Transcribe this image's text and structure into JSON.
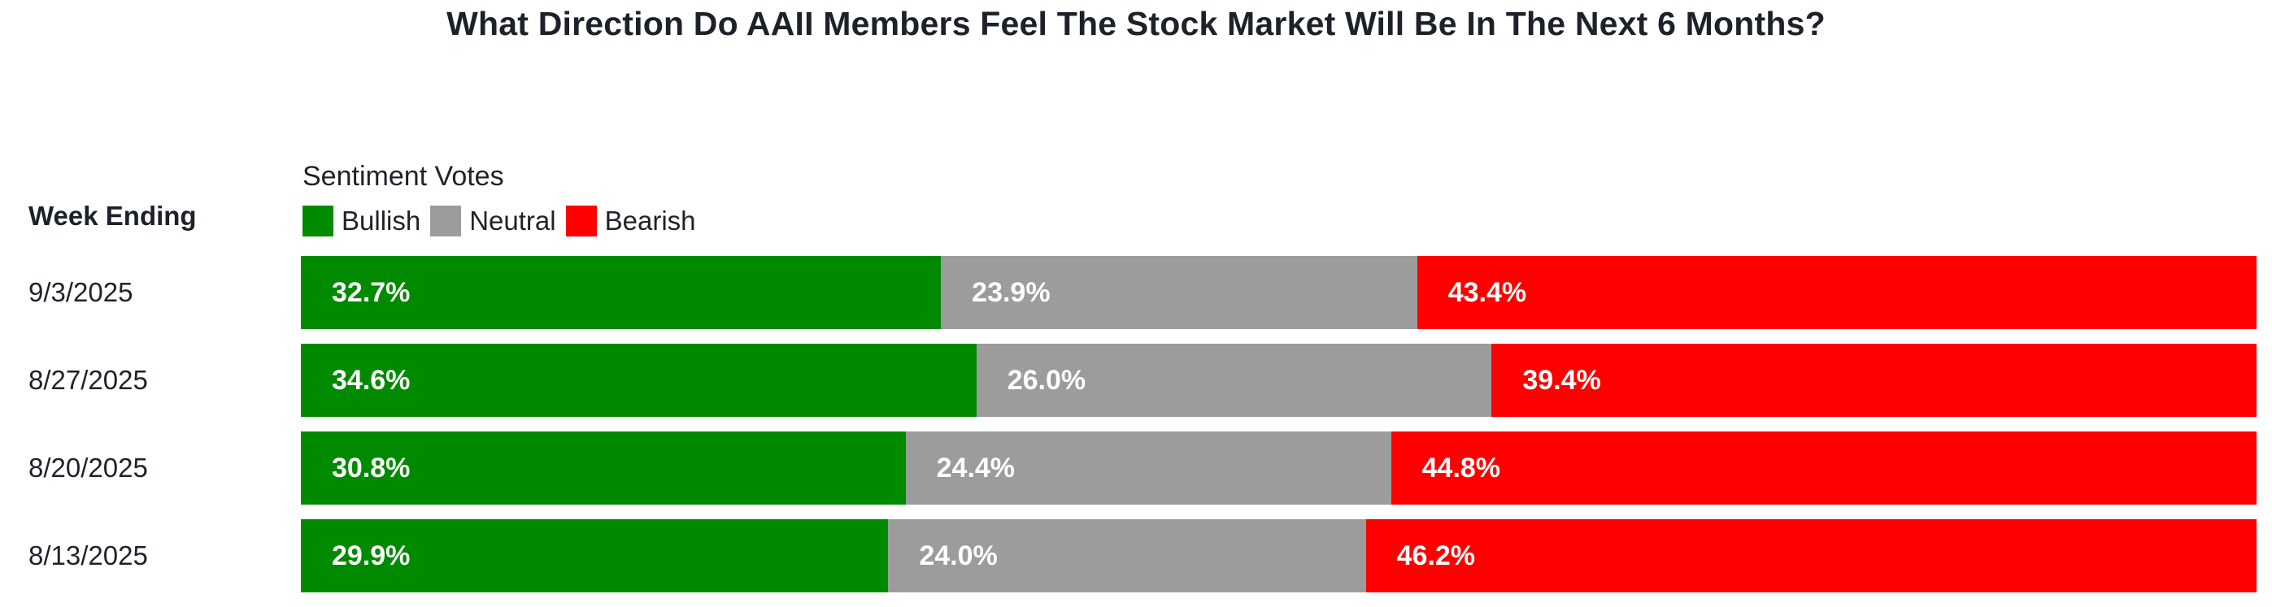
{
  "title": "What Direction Do AAII Members Feel The Stock Market Will Be In The Next 6 Months?",
  "legend": {
    "heading": "Sentiment Votes",
    "items": [
      {
        "label": "Bullish",
        "color": "#008A00"
      },
      {
        "label": "Neutral",
        "color": "#9C9C9C"
      },
      {
        "label": "Bearish",
        "color": "#FE0000"
      }
    ]
  },
  "week_ending_label": "Week Ending",
  "chart_data": {
    "type": "bar",
    "orientation": "horizontal-stacked",
    "title": "What Direction Do AAII Members Feel The Stock Market Will Be In The Next 6 Months?",
    "categories": [
      "9/3/2025",
      "8/27/2025",
      "8/20/2025",
      "8/13/2025"
    ],
    "series": [
      {
        "name": "Bullish",
        "color": "#008A00",
        "values": [
          32.7,
          34.6,
          30.8,
          29.9
        ]
      },
      {
        "name": "Neutral",
        "color": "#9C9C9C",
        "values": [
          23.9,
          26.0,
          24.4,
          24.0
        ]
      },
      {
        "name": "Bearish",
        "color": "#FE0000",
        "values": [
          43.4,
          39.4,
          44.8,
          46.2
        ]
      }
    ],
    "value_suffix": "%",
    "xlim": [
      0,
      100
    ],
    "data_labels_shown": true,
    "legend_position": "top-left",
    "grid": false
  }
}
